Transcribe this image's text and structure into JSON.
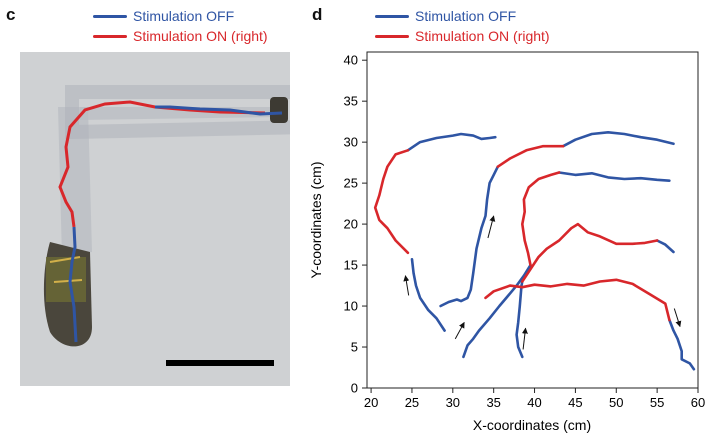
{
  "panel_c": {
    "letter": "c",
    "legend": [
      {
        "label": "Stimulation OFF",
        "color": "#2f55a4"
      },
      {
        "label": "Stimulation ON (right)",
        "color": "#d8272b"
      }
    ]
  },
  "panel_d": {
    "letter": "d",
    "legend": [
      {
        "label": "Stimulation OFF",
        "color": "#2f55a4"
      },
      {
        "label": "Stimulation ON (right)",
        "color": "#d8272b"
      }
    ]
  },
  "chart_data": {
    "type": "line",
    "xlabel": "X-coordinates (cm)",
    "ylabel": "Y-coordinates (cm)",
    "xlim": [
      19.5,
      60
    ],
    "ylim": [
      0,
      41
    ],
    "xticks": [
      20,
      25,
      30,
      35,
      40,
      45,
      50,
      55,
      60
    ],
    "yticks": [
      0,
      5,
      10,
      15,
      20,
      25,
      30,
      35,
      40
    ],
    "grid": false,
    "legend_position": "top-left, outside plot",
    "series": [
      {
        "name": "Stimulation OFF",
        "color": "#2f55a4",
        "segments": [
          [
            [
              29,
              7
            ],
            [
              28,
              8.5
            ],
            [
              27,
              9.5
            ],
            [
              26,
              11
            ],
            [
              25.5,
              12.5
            ],
            [
              25.2,
              14
            ],
            [
              25,
              15.7
            ]
          ],
          [
            [
              28.5,
              10
            ],
            [
              29.5,
              10.5
            ],
            [
              30.5,
              10.8
            ],
            [
              31,
              10.6
            ],
            [
              31.8,
              11
            ],
            [
              32.2,
              12
            ],
            [
              32.5,
              14
            ],
            [
              32.9,
              17
            ],
            [
              33.5,
              19.5
            ],
            [
              34,
              21
            ],
            [
              34.2,
              23
            ],
            [
              34.5,
              25
            ],
            [
              35,
              26
            ],
            [
              35.5,
              27
            ]
          ],
          [
            [
              31.3,
              3.8
            ],
            [
              31.8,
              5.2
            ],
            [
              32.5,
              6
            ],
            [
              33.2,
              7
            ],
            [
              34.5,
              8.5
            ],
            [
              35.7,
              10
            ],
            [
              36.8,
              11.3
            ],
            [
              37.8,
              12.5
            ],
            [
              38.7,
              13.7
            ],
            [
              39.5,
              15
            ]
          ],
          [
            [
              38.5,
              3.8
            ],
            [
              38,
              5
            ],
            [
              37.8,
              6.5
            ],
            [
              38,
              8
            ],
            [
              38.2,
              10
            ],
            [
              38.4,
              12.5
            ],
            [
              38.5,
              13
            ]
          ],
          [
            [
              24.5,
              29
            ],
            [
              26,
              30
            ],
            [
              28,
              30.5
            ],
            [
              30,
              30.8
            ],
            [
              31,
              31
            ],
            [
              32.5,
              30.8
            ],
            [
              33.5,
              30.4
            ],
            [
              34.5,
              30.5
            ],
            [
              35.2,
              30.6
            ]
          ],
          [
            [
              43,
              26.3
            ],
            [
              45,
              26
            ],
            [
              47,
              26.2
            ],
            [
              49,
              25.7
            ],
            [
              51,
              25.5
            ],
            [
              53,
              25.6
            ],
            [
              55,
              25.4
            ],
            [
              56.5,
              25.3
            ]
          ],
          [
            [
              43.5,
              29.5
            ],
            [
              45,
              30.3
            ],
            [
              47,
              31
            ],
            [
              49,
              31.2
            ],
            [
              51,
              31
            ],
            [
              53,
              30.6
            ],
            [
              55,
              30.3
            ],
            [
              57,
              29.8
            ]
          ],
          [
            [
              55,
              18
            ],
            [
              56,
              17.5
            ],
            [
              57,
              16.6
            ]
          ],
          [
            [
              56.5,
              8.3
            ],
            [
              57,
              7
            ],
            [
              57.5,
              6
            ],
            [
              58,
              4.5
            ],
            [
              58,
              3.5
            ],
            [
              59,
              3
            ],
            [
              59.5,
              2.3
            ]
          ]
        ]
      },
      {
        "name": "Stimulation ON (right)",
        "color": "#d8272b",
        "segments": [
          [
            [
              24.5,
              16.5
            ],
            [
              23,
              18
            ],
            [
              22,
              19.5
            ],
            [
              21,
              20.5
            ],
            [
              20.5,
              22
            ],
            [
              21,
              23.5
            ],
            [
              21.5,
              25.5
            ],
            [
              22,
              27
            ],
            [
              23,
              28.5
            ],
            [
              24.5,
              29
            ]
          ],
          [
            [
              35.5,
              27
            ],
            [
              37,
              28
            ],
            [
              39,
              29
            ],
            [
              41,
              29.5
            ],
            [
              43.5,
              29.5
            ]
          ],
          [
            [
              38.5,
              13
            ],
            [
              39.5,
              14.5
            ],
            [
              40.5,
              16
            ],
            [
              41.5,
              17
            ],
            [
              43,
              18
            ],
            [
              44.5,
              19.5
            ],
            [
              45.3,
              20
            ],
            [
              46.5,
              19
            ],
            [
              48,
              18.5
            ],
            [
              50,
              17.6
            ],
            [
              52,
              17.6
            ],
            [
              53.5,
              17.7
            ],
            [
              55,
              18
            ]
          ],
          [
            [
              34,
              11
            ],
            [
              35,
              11.8
            ],
            [
              37,
              12.5
            ],
            [
              38.5,
              12.3
            ],
            [
              40,
              12.6
            ],
            [
              42,
              12.4
            ],
            [
              44,
              12.7
            ],
            [
              46,
              12.5
            ],
            [
              48,
              13
            ],
            [
              50,
              13.2
            ],
            [
              52,
              12.7
            ],
            [
              54,
              11.5
            ],
            [
              56,
              10.3
            ],
            [
              56.5,
              8.3
            ]
          ],
          [
            [
              39.5,
              15
            ],
            [
              39.2,
              16.5
            ],
            [
              38.8,
              18
            ],
            [
              38.5,
              20
            ],
            [
              38.8,
              21.5
            ],
            [
              38.7,
              23
            ],
            [
              39.3,
              24.5
            ],
            [
              40.5,
              25.5
            ],
            [
              42,
              26
            ],
            [
              43,
              26.3
            ]
          ]
        ]
      }
    ],
    "arrows": [
      {
        "from": [
          24.6,
          11.3
        ],
        "to": [
          24.2,
          13.7
        ]
      },
      {
        "from": [
          30.3,
          6
        ],
        "to": [
          31.4,
          8
        ]
      },
      {
        "from": [
          34.3,
          18.3
        ],
        "to": [
          35,
          21
        ]
      },
      {
        "from": [
          38.6,
          4.7
        ],
        "to": [
          38.9,
          7.3
        ]
      },
      {
        "from": [
          57.1,
          9.7
        ],
        "to": [
          57.8,
          7.5
        ]
      }
    ]
  }
}
